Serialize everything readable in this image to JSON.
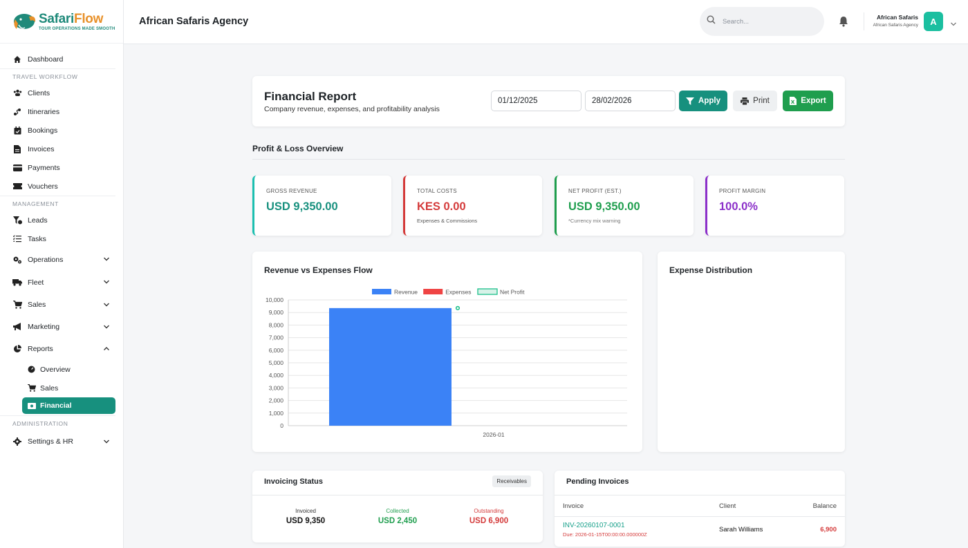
{
  "brand": {
    "name_part1": "Safari",
    "name_part2": "Flow",
    "tagline": "TOUR OPERATIONS MADE SMOOTH"
  },
  "sidebar": {
    "dashboard": "Dashboard",
    "section_travel": "TRAVEL WORKFLOW",
    "clients": "Clients",
    "itineraries": "Itineraries",
    "bookings": "Bookings",
    "invoices": "Invoices",
    "payments": "Payments",
    "vouchers": "Vouchers",
    "section_management": "MANAGEMENT",
    "leads": "Leads",
    "tasks": "Tasks",
    "operations": "Operations",
    "fleet": "Fleet",
    "sales": "Sales",
    "marketing": "Marketing",
    "reports": "Reports",
    "reports_overview": "Overview",
    "reports_sales": "Sales",
    "reports_financial": "Financial",
    "section_admin": "ADMINISTRATION",
    "settings_hr": "Settings & HR"
  },
  "header": {
    "agency": "African Safaris Agency",
    "search_placeholder": "Search...",
    "user_name": "African Safaris",
    "user_org": "African Safaris Agency",
    "avatar_initial": "A"
  },
  "report": {
    "title": "Financial Report",
    "subtitle": "Company revenue, expenses, and profitability analysis",
    "date_from": "01/12/2025",
    "date_to": "28/02/2026",
    "apply": "Apply",
    "print": "Print",
    "export": "Export"
  },
  "pl_title": "Profit & Loss Overview",
  "kpis": {
    "gross": {
      "label": "GROSS REVENUE",
      "value": "USD 9,350.00",
      "color": "#1bbfb0"
    },
    "costs": {
      "label": "TOTAL COSTS",
      "value": "KES 0.00",
      "note": "Expenses & Commissions",
      "color": "#d43a3a"
    },
    "net": {
      "label": "NET PROFIT (EST.)",
      "value": "USD 9,350.00",
      "note": "*Currency mix warning",
      "color": "#1f9e4e"
    },
    "margin": {
      "label": "PROFIT MARGIN",
      "value": "100.0%",
      "color": "#8b2fc9"
    }
  },
  "chart_title": "Revenue vs Expenses Flow",
  "expense_title": "Expense Distribution",
  "chart_data": {
    "type": "bar",
    "categories": [
      "2026-01"
    ],
    "series": [
      {
        "name": "Revenue",
        "values": [
          9350
        ],
        "color": "#3b82f6"
      },
      {
        "name": "Expenses",
        "values": [
          0
        ],
        "color": "#ef4444"
      },
      {
        "name": "Net Profit",
        "values": [
          9350
        ],
        "color": "#1bbf8a"
      }
    ],
    "ylim": [
      0,
      10000
    ],
    "yticks": [
      "0",
      "1,000",
      "2,000",
      "3,000",
      "4,000",
      "5,000",
      "6,000",
      "7,000",
      "8,000",
      "9,000",
      "10,000"
    ],
    "legend": "top",
    "grid": true
  },
  "invoicing": {
    "title": "Invoicing Status",
    "badge": "Receivables",
    "invoiced_label": "Invoiced",
    "invoiced_value": "USD 9,350",
    "collected_label": "Collected",
    "collected_value": "USD 2,450",
    "outstanding_label": "Outstanding",
    "outstanding_value": "USD 6,900"
  },
  "pending": {
    "title": "Pending Invoices",
    "col_invoice": "Invoice",
    "col_client": "Client",
    "col_balance": "Balance",
    "rows": [
      {
        "invoice": "INV-20260107-0001",
        "due": "Due: 2026-01-15T00:00:00.000000Z",
        "client": "Sarah Williams",
        "balance": "6,900"
      }
    ]
  }
}
